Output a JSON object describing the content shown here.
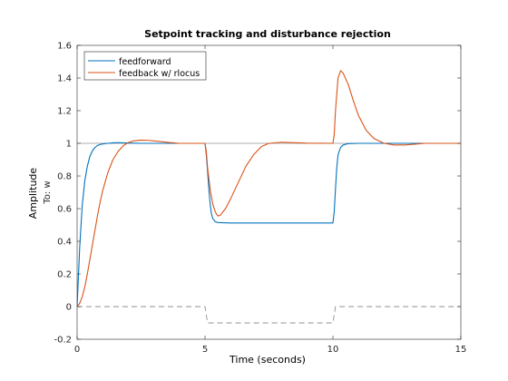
{
  "chart_data": {
    "type": "line",
    "title": "Setpoint tracking and disturbance rejection",
    "xlabel": "Time (seconds)",
    "ylabel": "Amplitude",
    "ylabel_sub": "To: w",
    "xlim": [
      0,
      15
    ],
    "ylim": [
      -0.2,
      1.6
    ],
    "xticks": [
      0,
      5,
      10,
      15
    ],
    "yticks": [
      -0.2,
      0,
      0.2,
      0.4,
      0.6,
      0.8,
      1,
      1.2,
      1.4,
      1.6
    ],
    "grid": false,
    "legend_position": "top-left",
    "colors": {
      "feedforward": "#0072bd",
      "feedback": "#d95319",
      "reference": "#909090",
      "disturbance": "#909090",
      "axes": "#262626"
    },
    "series": [
      {
        "name": "feedforward",
        "x": [
          0,
          0.1,
          0.2,
          0.3,
          0.4,
          0.5,
          0.6,
          0.7,
          0.8,
          0.9,
          1.0,
          1.2,
          1.4,
          1.6,
          1.8,
          2.0,
          2.5,
          3.0,
          3.6,
          5.0,
          5.05,
          5.1,
          5.15,
          5.2,
          5.25,
          5.3,
          5.4,
          5.5,
          6.0,
          7.0,
          8.0,
          9.0,
          9.99,
          10.0,
          10.05,
          10.1,
          10.15,
          10.2,
          10.3,
          10.4,
          10.6,
          11.0,
          12.0,
          13.0,
          14.0,
          15.0
        ],
        "y": [
          0,
          0.36,
          0.62,
          0.77,
          0.86,
          0.92,
          0.955,
          0.975,
          0.987,
          0.993,
          0.996,
          1.0,
          1.003,
          1.004,
          1.003,
          1.002,
          1.0,
          1.0,
          1.0,
          1.0,
          0.93,
          0.83,
          0.72,
          0.63,
          0.57,
          0.54,
          0.52,
          0.515,
          0.512,
          0.512,
          0.512,
          0.512,
          0.512,
          0.512,
          0.58,
          0.72,
          0.85,
          0.93,
          0.975,
          0.99,
          0.998,
          1.0,
          1.0,
          1.0,
          1.0,
          1.0
        ]
      },
      {
        "name": "feedback w/ rlocus",
        "x": [
          0,
          0.1,
          0.2,
          0.3,
          0.4,
          0.5,
          0.6,
          0.7,
          0.8,
          0.9,
          1.0,
          1.2,
          1.4,
          1.6,
          1.8,
          2.0,
          2.2,
          2.5,
          2.8,
          3.0,
          3.3,
          3.6,
          4.0,
          5.0,
          5.05,
          5.1,
          5.2,
          5.3,
          5.4,
          5.5,
          5.6,
          5.8,
          6.0,
          6.3,
          6.6,
          6.9,
          7.2,
          7.5,
          8.0,
          8.5,
          9.0,
          9.99,
          10.0,
          10.05,
          10.1,
          10.2,
          10.3,
          10.4,
          10.6,
          10.8,
          11.0,
          11.3,
          11.6,
          12.0,
          12.4,
          12.8,
          13.2,
          13.6,
          14.0,
          15.0
        ],
        "y": [
          0,
          0.02,
          0.06,
          0.12,
          0.2,
          0.29,
          0.38,
          0.47,
          0.56,
          0.64,
          0.71,
          0.82,
          0.9,
          0.95,
          0.985,
          1.005,
          1.015,
          1.02,
          1.018,
          1.015,
          1.01,
          1.005,
          1.0,
          1.0,
          0.95,
          0.85,
          0.72,
          0.63,
          0.58,
          0.555,
          0.56,
          0.6,
          0.66,
          0.76,
          0.86,
          0.93,
          0.98,
          1.0,
          1.007,
          1.004,
          1.001,
          1.0,
          1.0,
          1.05,
          1.2,
          1.4,
          1.445,
          1.43,
          1.36,
          1.26,
          1.17,
          1.08,
          1.03,
          1.0,
          0.99,
          0.99,
          0.995,
          1.0,
          1.0,
          1.0
        ]
      },
      {
        "name": "reference",
        "x": [
          0,
          15
        ],
        "y": [
          1,
          1
        ]
      },
      {
        "name": "disturbance",
        "x": [
          0,
          5.0,
          5.1,
          10.0,
          10.1,
          15
        ],
        "y": [
          0,
          0,
          -0.1,
          -0.1,
          0,
          0
        ]
      }
    ]
  }
}
